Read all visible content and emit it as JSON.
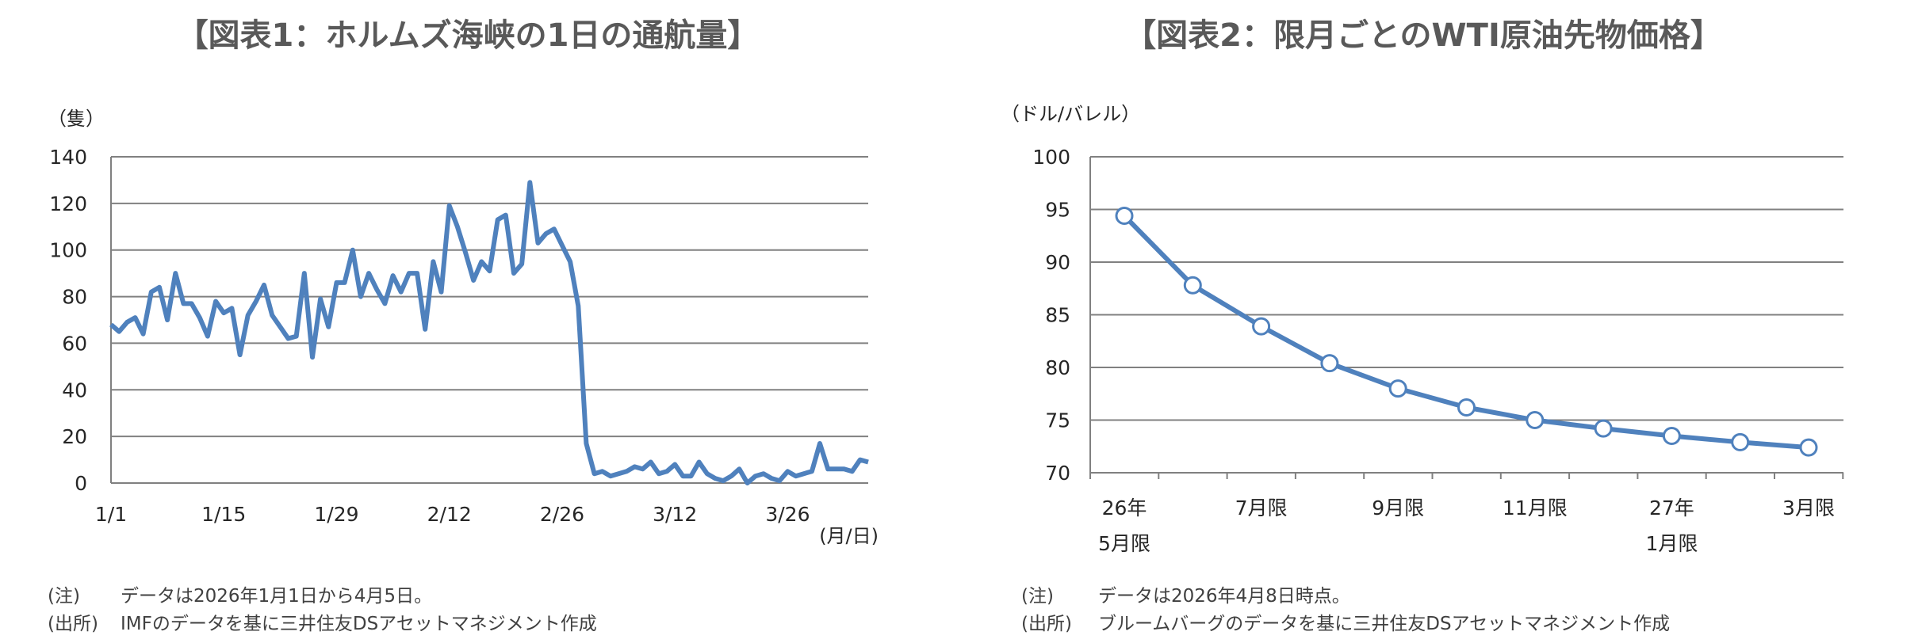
{
  "colors": {
    "line": "#4f81bd",
    "grid": "#808080",
    "axis": "#808080",
    "marker_fill": "#ffffff"
  },
  "chart_data": [
    {
      "type": "line",
      "title": "【図表1：ホルムズ海峡の1日の通航量】",
      "ylabel": "（隻）",
      "xlabel": "(月/日)",
      "ylim": [
        0,
        140
      ],
      "y_ticks": [
        "0",
        "20",
        "40",
        "60",
        "80",
        "100",
        "120",
        "140"
      ],
      "x_ticks": [
        {
          "label": "1/1",
          "index": 0
        },
        {
          "label": "1/15",
          "index": 14
        },
        {
          "label": "1/29",
          "index": 28
        },
        {
          "label": "2/12",
          "index": 42
        },
        {
          "label": "2/26",
          "index": 56
        },
        {
          "label": "3/12",
          "index": 70
        },
        {
          "label": "3/26",
          "index": 84
        }
      ],
      "grid": true,
      "series": [
        {
          "values": [
            68,
            65,
            69,
            71,
            64,
            82,
            84,
            70,
            90,
            77,
            77,
            71,
            63,
            78,
            73,
            75,
            55,
            72,
            78,
            85,
            72,
            67,
            62,
            63,
            90,
            54,
            79,
            67,
            86,
            86,
            100,
            80,
            90,
            83,
            77,
            89,
            82,
            90,
            90,
            66,
            95,
            82,
            119,
            110,
            99,
            87,
            95,
            91,
            113,
            115,
            90,
            94,
            129,
            103,
            107,
            109,
            102,
            95,
            76,
            17,
            4,
            5,
            3,
            4,
            5,
            7,
            6,
            9,
            4,
            5,
            8,
            3,
            3,
            9,
            4,
            2,
            1,
            3,
            6,
            0,
            3,
            4,
            2,
            1,
            5,
            3,
            4,
            5,
            17,
            6,
            6,
            6,
            5,
            10,
            9
          ]
        }
      ],
      "notes": [
        {
          "label": "(注)",
          "text": "データは2026年1月1日から4月5日。"
        },
        {
          "label": "(出所)",
          "text": "IMFのデータを基に三井住友DSアセットマネジメント作成"
        }
      ]
    },
    {
      "type": "line",
      "title": "【図表2：限月ごとのWTI原油先物価格】",
      "ylabel": "（ドル/バレル）",
      "ylim": [
        70,
        100
      ],
      "y_ticks": [
        "70",
        "75",
        "80",
        "85",
        "90",
        "95",
        "100"
      ],
      "x_ticks": [
        {
          "label": "26年",
          "label2": "5月限",
          "index": 0
        },
        {
          "label": "7月限",
          "index": 2
        },
        {
          "label": "9月限",
          "index": 4
        },
        {
          "label": "11月限",
          "index": 6
        },
        {
          "label": "27年",
          "label2": "1月限",
          "index": 8
        },
        {
          "label": "3月限",
          "index": 10
        }
      ],
      "grid": true,
      "series": [
        {
          "values": [
            94.4,
            87.8,
            83.9,
            80.4,
            78.0,
            76.2,
            75.0,
            74.2,
            73.5,
            72.9,
            72.4
          ]
        }
      ],
      "notes": [
        {
          "label": "(注)",
          "text": "データは2026年4月8日時点。"
        },
        {
          "label": "(出所)",
          "text": "ブルームバーグのデータを基に三井住友DSアセットマネジメント作成"
        }
      ]
    }
  ]
}
